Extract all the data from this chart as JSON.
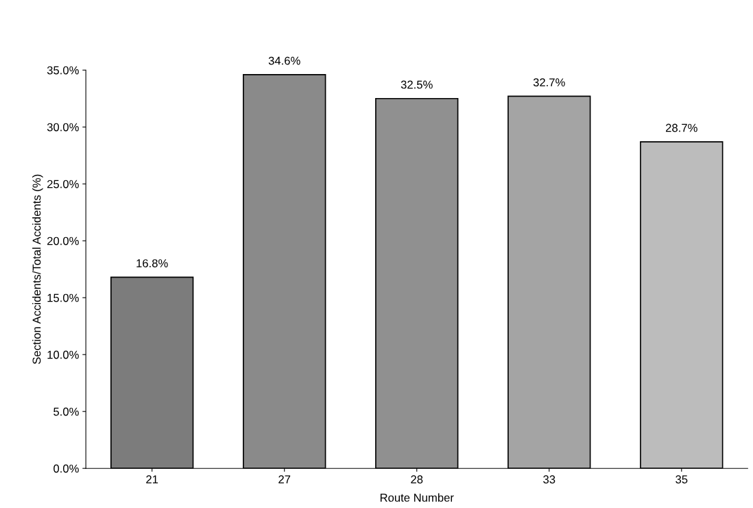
{
  "chart_data": {
    "type": "bar",
    "xlabel": "Route Number",
    "ylabel": "Section Accidents/Total Accidents (%)",
    "categories": [
      "21",
      "27",
      "28",
      "33",
      "35"
    ],
    "values": [
      16.8,
      34.6,
      32.5,
      32.7,
      28.7
    ],
    "colors": [
      "#7c7c7c",
      "#8a8a8a",
      "#909090",
      "#a4a4a4",
      "#bcbcbc"
    ],
    "value_labels": [
      "16.8%",
      "34.6%",
      "32.5%",
      "32.7%",
      "28.7%"
    ],
    "ylim": [
      0,
      35
    ],
    "yticks": [
      {
        "value": 0,
        "label": "0.0%"
      },
      {
        "value": 5,
        "label": "5.0%"
      },
      {
        "value": 10,
        "label": "10.0%"
      },
      {
        "value": 15,
        "label": "15.0%"
      },
      {
        "value": 20,
        "label": "20.0%"
      },
      {
        "value": 25,
        "label": "25.0%"
      },
      {
        "value": 30,
        "label": "30.0%"
      },
      {
        "value": 35,
        "label": "35.0%"
      }
    ],
    "grid": false,
    "legend": false
  }
}
